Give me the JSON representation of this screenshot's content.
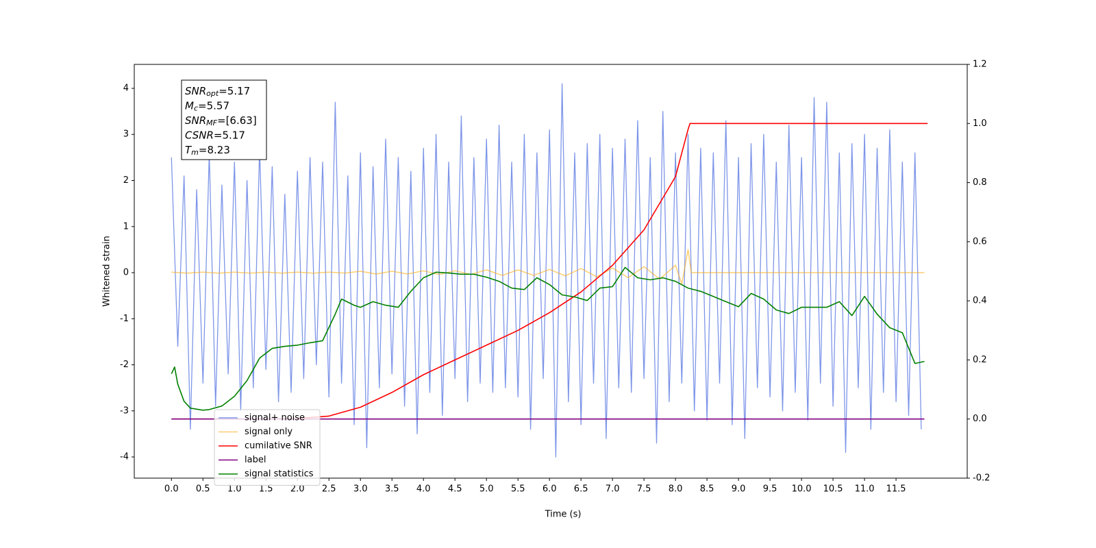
{
  "chart_data": {
    "type": "line",
    "xlabel": "Time (s)",
    "ylabel": "Whitened strain",
    "xlim": [
      -0.59,
      12.63
    ],
    "ylim": [
      -4.46,
      4.52
    ],
    "y2lim": [
      -0.2,
      1.2
    ],
    "xticks": [
      {
        "value": 0,
        "label": "0.0"
      },
      {
        "value": 0.5,
        "label": "0.5"
      },
      {
        "value": 1,
        "label": "1.0"
      },
      {
        "value": 1.5,
        "label": "1.5"
      },
      {
        "value": 2,
        "label": "2.0"
      },
      {
        "value": 2.5,
        "label": "2.5"
      },
      {
        "value": 3,
        "label": "3.0"
      },
      {
        "value": 3.5,
        "label": "3.5"
      },
      {
        "value": 4,
        "label": "4.0"
      },
      {
        "value": 4.5,
        "label": "4.5"
      },
      {
        "value": 5,
        "label": "5.0"
      },
      {
        "value": 5.5,
        "label": "5.5"
      },
      {
        "value": 6,
        "label": "6.0"
      },
      {
        "value": 6.5,
        "label": "6.5"
      },
      {
        "value": 7,
        "label": "7.0"
      },
      {
        "value": 7.5,
        "label": "7.5"
      },
      {
        "value": 8,
        "label": "8.0"
      },
      {
        "value": 8.5,
        "label": "8.5"
      },
      {
        "value": 9,
        "label": "9.0"
      },
      {
        "value": 9.5,
        "label": "9.5"
      },
      {
        "value": 10,
        "label": "10.0"
      },
      {
        "value": 10.5,
        "label": "10.5"
      },
      {
        "value": 11,
        "label": "11.0"
      },
      {
        "value": 11.5,
        "label": "11.5"
      }
    ],
    "yticks": [
      -4,
      -3,
      -2,
      -1,
      0,
      1,
      2,
      3,
      4
    ],
    "y2ticks": [
      -0.2,
      {
        "value": 0,
        "label": "0.0"
      },
      0.2,
      0.4,
      0.6,
      0.8,
      {
        "value": 1,
        "label": "1.0"
      },
      1.2
    ],
    "annotations": [
      {
        "symbol": "SNR",
        "subscript": "opt",
        "text": "=5.17"
      },
      {
        "symbol": "M",
        "subscript": "c",
        "text": "=5.57"
      },
      {
        "symbol": "SNR",
        "subscript": "MF",
        "text": "=[6.63]"
      },
      {
        "symbol": "CSNR",
        "subscript": "",
        "text": "=5.17"
      },
      {
        "symbol": "T",
        "subscript": "m",
        "text": "=8.23"
      }
    ],
    "series": [
      {
        "name": "signal+ noise",
        "color": "#6f8ae6",
        "x": [
          0,
          0.1,
          0.2,
          0.3,
          0.4,
          0.5,
          0.6,
          0.7,
          0.8,
          0.9,
          1,
          1.1,
          1.2,
          1.3,
          1.4,
          1.5,
          1.6,
          1.7,
          1.8,
          1.9,
          2,
          2.1,
          2.2,
          2.3,
          2.4,
          2.5,
          2.6,
          2.7,
          2.8,
          2.9,
          3,
          3.1,
          3.2,
          3.3,
          3.4,
          3.5,
          3.6,
          3.7,
          3.8,
          3.9,
          4,
          4.1,
          4.2,
          4.3,
          4.4,
          4.5,
          4.6,
          4.7,
          4.8,
          4.9,
          5,
          5.1,
          5.2,
          5.3,
          5.4,
          5.5,
          5.6,
          5.7,
          5.8,
          5.9,
          6,
          6.1,
          6.2,
          6.3,
          6.4,
          6.5,
          6.6,
          6.7,
          6.8,
          6.9,
          7,
          7.1,
          7.2,
          7.3,
          7.4,
          7.5,
          7.6,
          7.7,
          7.8,
          7.9,
          8,
          8.1,
          8.2,
          8.3,
          8.4,
          8.5,
          8.6,
          8.7,
          8.8,
          8.9,
          9,
          9.1,
          9.2,
          9.3,
          9.4,
          9.5,
          9.6,
          9.7,
          9.8,
          9.9,
          10,
          10.1,
          10.2,
          10.3,
          10.4,
          10.5,
          10.6,
          10.7,
          10.8,
          10.9,
          11,
          11.1,
          11.2,
          11.3,
          11.4,
          11.5,
          11.6,
          11.7,
          11.8,
          11.9
        ],
        "values": [
          2.5,
          -1.6,
          2.1,
          -3.4,
          1.8,
          -2.4,
          2.6,
          -2.9,
          1.9,
          -2.2,
          2.4,
          -3.0,
          2.0,
          -2.5,
          2.7,
          -2.1,
          2.3,
          -2.8,
          1.7,
          -2.6,
          2.2,
          -2.3,
          2.5,
          -2.0,
          2.4,
          -2.7,
          3.7,
          -2.4,
          2.1,
          -3.3,
          2.6,
          -3.8,
          2.3,
          -2.5,
          2.9,
          -2.2,
          2.5,
          -2.9,
          2.2,
          -3.5,
          2.7,
          -2.6,
          3.0,
          -3.1,
          2.4,
          -2.3,
          3.4,
          -2.8,
          2.5,
          -2.4,
          2.9,
          -2.6,
          3.2,
          -2.5,
          2.4,
          -2.7,
          3.0,
          -3.4,
          2.6,
          -2.3,
          3.1,
          -4.0,
          4.1,
          -2.8,
          2.6,
          -3.3,
          2.8,
          -2.4,
          3.0,
          -3.6,
          2.7,
          -2.5,
          2.9,
          -2.6,
          3.3,
          -2.3,
          2.5,
          -3.7,
          3.5,
          -2.8,
          2.6,
          -2.4,
          3.0,
          -3.0,
          2.7,
          -3.2,
          2.6,
          -2.4,
          3.3,
          -3.3,
          2.5,
          -3.6,
          2.8,
          -2.5,
          3.0,
          -2.7,
          2.4,
          -3.0,
          3.2,
          -2.6,
          2.5,
          -3.2,
          3.8,
          -2.4,
          3.7,
          -2.9,
          2.6,
          -3.9,
          2.8,
          -2.5,
          3.0,
          -3.4,
          2.7,
          -2.6,
          3.1,
          -2.8,
          2.4,
          -3.1,
          2.6,
          -3.4
        ]
      },
      {
        "name": "signal only",
        "color": "#ffa500",
        "x": [
          0,
          0.25,
          0.5,
          0.75,
          1,
          1.25,
          1.5,
          1.75,
          2,
          2.25,
          2.5,
          2.75,
          3,
          3.25,
          3.5,
          3.75,
          4,
          4.25,
          4.5,
          4.75,
          5,
          5.25,
          5.5,
          5.75,
          6,
          6.25,
          6.5,
          6.75,
          7,
          7.25,
          7.5,
          7.75,
          8,
          8.1,
          8.2,
          8.25,
          9,
          10,
          11,
          11.95
        ],
        "values": [
          0.01,
          -0.01,
          0.01,
          -0.01,
          0.01,
          -0.01,
          0.01,
          -0.01,
          0.01,
          -0.01,
          0.01,
          -0.01,
          0.03,
          -0.03,
          0.03,
          -0.03,
          0.04,
          -0.04,
          0.04,
          -0.04,
          0.06,
          -0.06,
          0.06,
          -0.06,
          0.07,
          -0.07,
          0.09,
          -0.09,
          0.1,
          -0.11,
          0.13,
          -0.14,
          0.16,
          -0.25,
          0.5,
          0,
          0,
          0,
          0,
          0
        ]
      },
      {
        "name": "cumilative SNR",
        "color": "#ff0000",
        "axis": "y2",
        "x": [
          0,
          1,
          1.5,
          2,
          2.5,
          3,
          3.5,
          4,
          4.5,
          5,
          5.5,
          6,
          6.5,
          7,
          7.5,
          8,
          8.2,
          8.23,
          9,
          10,
          11,
          12
        ],
        "values": [
          0,
          0,
          0,
          0.002,
          0.01,
          0.04,
          0.09,
          0.15,
          0.2,
          0.25,
          0.3,
          0.36,
          0.43,
          0.52,
          0.64,
          0.82,
          0.98,
          1.0,
          1.0,
          1.0,
          1.0,
          1.0
        ]
      },
      {
        "name": "label",
        "color": "#800080",
        "axis": "y2",
        "x": [
          0,
          11.95
        ],
        "values": [
          0,
          0
        ]
      },
      {
        "name": "signal statistics",
        "color": "#008000",
        "axis": "y2",
        "x": [
          0,
          0.05,
          0.1,
          0.2,
          0.3,
          0.5,
          0.6,
          0.8,
          1,
          1.2,
          1.4,
          1.6,
          1.8,
          2,
          2.2,
          2.4,
          2.6,
          2.7,
          2.9,
          3,
          3.2,
          3.4,
          3.6,
          3.8,
          4,
          4.2,
          4.4,
          4.6,
          4.8,
          5,
          5.2,
          5.4,
          5.6,
          5.8,
          6,
          6.2,
          6.4,
          6.6,
          6.8,
          7,
          7.2,
          7.4,
          7.6,
          7.8,
          8,
          8.2,
          8.4,
          8.6,
          8.8,
          9,
          9.2,
          9.4,
          9.6,
          9.8,
          10,
          10.2,
          10.4,
          10.6,
          10.8,
          11,
          11.2,
          11.4,
          11.6,
          11.8,
          11.95
        ],
        "values": [
          0.153,
          0.176,
          0.118,
          0.06,
          0.037,
          0.03,
          0.032,
          0.044,
          0.077,
          0.13,
          0.206,
          0.239,
          0.246,
          0.25,
          0.258,
          0.265,
          0.355,
          0.406,
          0.385,
          0.378,
          0.397,
          0.385,
          0.378,
          0.432,
          0.478,
          0.497,
          0.494,
          0.49,
          0.49,
          0.48,
          0.466,
          0.443,
          0.438,
          0.478,
          0.455,
          0.42,
          0.413,
          0.401,
          0.443,
          0.448,
          0.513,
          0.478,
          0.471,
          0.478,
          0.466,
          0.443,
          0.432,
          0.415,
          0.397,
          0.38,
          0.425,
          0.406,
          0.369,
          0.357,
          0.378,
          0.378,
          0.378,
          0.397,
          0.35,
          0.415,
          0.355,
          0.309,
          0.292,
          0.188,
          0.195
        ]
      }
    ],
    "legend": "lower left"
  }
}
